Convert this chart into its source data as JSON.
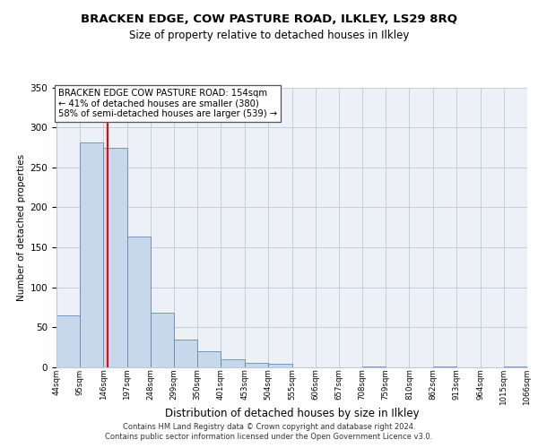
{
  "title": "BRACKEN EDGE, COW PASTURE ROAD, ILKLEY, LS29 8RQ",
  "subtitle": "Size of property relative to detached houses in Ilkley",
  "xlabel": "Distribution of detached houses by size in Ilkley",
  "ylabel": "Number of detached properties",
  "bar_color": "#c8d8eb",
  "bar_edge_color": "#5f8ab8",
  "red_line_x": 154,
  "annotation_line1": "BRACKEN EDGE COW PASTURE ROAD: 154sqm",
  "annotation_line2": "← 41% of detached houses are smaller (380)",
  "annotation_line3": "58% of semi-detached houses are larger (539) →",
  "footer1": "Contains HM Land Registry data © Crown copyright and database right 2024.",
  "footer2": "Contains public sector information licensed under the Open Government Licence v3.0.",
  "bin_edges": [
    44,
    95,
    146,
    197,
    248,
    299,
    350,
    401,
    453,
    504,
    555,
    606,
    657,
    708,
    759,
    810,
    862,
    913,
    964,
    1015,
    1066
  ],
  "counts": [
    65,
    281,
    274,
    164,
    68,
    35,
    20,
    10,
    6,
    5,
    0,
    0,
    0,
    1,
    0,
    0,
    1,
    0,
    0,
    1
  ],
  "ylim": [
    0,
    350
  ],
  "yticks": [
    0,
    50,
    100,
    150,
    200,
    250,
    300,
    350
  ],
  "grid_color": "#bec8d6",
  "background_color": "#edf1f7",
  "title_fontsize": 9.5,
  "subtitle_fontsize": 8.5,
  "ylabel_fontsize": 7.5,
  "xlabel_fontsize": 8.5,
  "ytick_fontsize": 7.5,
  "xtick_fontsize": 6.2,
  "footer_fontsize": 6.0,
  "annot_fontsize": 7.2
}
